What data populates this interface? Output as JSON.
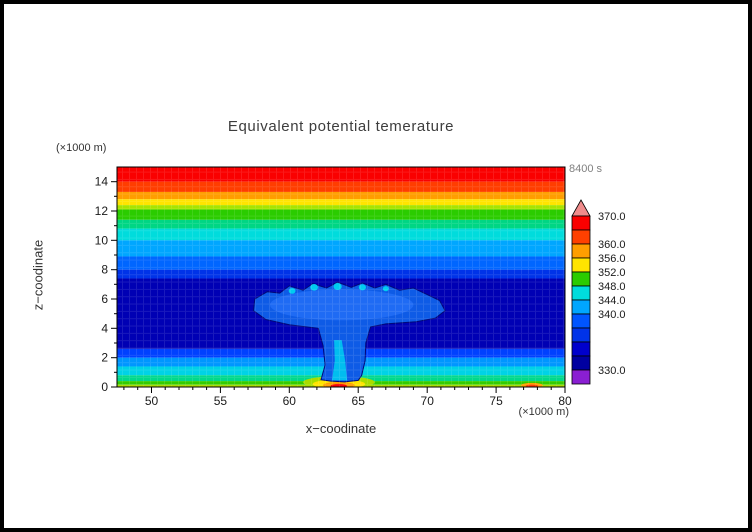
{
  "style": {
    "background": "#ffffff",
    "frame_color": "#000000",
    "title_color": "#3d3d3d",
    "muted_text_color": "#808080"
  },
  "chart_data": {
    "type": "heatmap",
    "subtype": "filled-contour",
    "title": "Equivalent potential temerature",
    "xlabel": "x−coodinate",
    "ylabel": "z−coodinate",
    "x_unit": "(×1000 m)",
    "y_unit": "(×1000 m)",
    "time_label": "8400 s",
    "xlim": [
      47.5,
      80
    ],
    "ylim": [
      0,
      15
    ],
    "xticks": [
      50,
      55,
      60,
      65,
      70,
      75,
      80
    ],
    "yticks": [
      0,
      2,
      4,
      6,
      8,
      10,
      12,
      14
    ],
    "levels": [
      330,
      340,
      344,
      348,
      352,
      356,
      360,
      370
    ],
    "legend_position": "right-colorbar",
    "grid": "fine-mesh-overlay",
    "bands": [
      {
        "z0": 14.0,
        "z1": 15.0,
        "color": "#FA0000"
      },
      {
        "z0": 13.3,
        "z1": 14.0,
        "color": "#FF3D00"
      },
      {
        "z0": 12.8,
        "z1": 13.3,
        "color": "#FF9E00"
      },
      {
        "z0": 12.4,
        "z1": 12.8,
        "color": "#FFE400"
      },
      {
        "z0": 12.1,
        "z1": 12.4,
        "color": "#A8E400"
      },
      {
        "z0": 11.4,
        "z1": 12.1,
        "color": "#2BCC00"
      },
      {
        "z0": 10.8,
        "z1": 11.4,
        "color": "#00D684"
      },
      {
        "z0": 10.0,
        "z1": 10.8,
        "color": "#00DCDC"
      },
      {
        "z0": 8.9,
        "z1": 10.0,
        "color": "#00A6FF"
      },
      {
        "z0": 8.0,
        "z1": 8.9,
        "color": "#0066FF"
      },
      {
        "z0": 7.4,
        "z1": 8.0,
        "color": "#0033E8"
      },
      {
        "z0": 2.6,
        "z1": 7.4,
        "color": "#0000B4"
      },
      {
        "z0": 2.0,
        "z1": 2.6,
        "color": "#0041FF"
      },
      {
        "z0": 1.4,
        "z1": 2.0,
        "color": "#0096FF"
      },
      {
        "z0": 0.8,
        "z1": 1.4,
        "color": "#00D2E6"
      },
      {
        "z0": 0.4,
        "z1": 0.8,
        "color": "#00D88C"
      },
      {
        "z0": 0.15,
        "z1": 0.4,
        "color": "#33CC00"
      },
      {
        "z0": 0.0,
        "z1": 0.15,
        "color": "#A8DC00"
      }
    ],
    "plume": {
      "description": "mushroom-shaped thermal plume of lighter blue air centered near x=64 rising from surface to z≈7",
      "color": "#0E5BE6",
      "outline": "#000878",
      "points": [
        [
          62.3,
          0.5
        ],
        [
          62.6,
          1.5
        ],
        [
          62.45,
          2.8
        ],
        [
          62.1,
          4.0
        ],
        [
          60.0,
          4.25
        ],
        [
          58.3,
          4.6
        ],
        [
          57.4,
          5.2
        ],
        [
          57.5,
          6.0
        ],
        [
          58.4,
          6.5
        ],
        [
          59.3,
          6.4
        ],
        [
          60.0,
          6.9
        ],
        [
          61.0,
          6.6
        ],
        [
          61.7,
          7.05
        ],
        [
          62.7,
          6.75
        ],
        [
          63.5,
          7.15
        ],
        [
          64.5,
          6.8
        ],
        [
          65.3,
          7.1
        ],
        [
          66.2,
          6.75
        ],
        [
          67.0,
          7.0
        ],
        [
          68.0,
          6.6
        ],
        [
          69.0,
          6.75
        ],
        [
          70.0,
          6.3
        ],
        [
          70.9,
          5.9
        ],
        [
          71.3,
          5.2
        ],
        [
          70.6,
          4.7
        ],
        [
          69.2,
          4.45
        ],
        [
          67.0,
          4.3
        ],
        [
          65.9,
          4.1
        ],
        [
          65.55,
          3.0
        ],
        [
          65.5,
          1.8
        ],
        [
          65.25,
          0.8
        ],
        [
          65.0,
          0.45
        ],
        [
          64.0,
          0.35
        ],
        [
          63.0,
          0.4
        ]
      ],
      "inner": {
        "cx": 63.8,
        "cz": 5.6,
        "rx": 5.2,
        "rz": 1.05,
        "color": "#2E79FF"
      },
      "speck_color": "#00CCF0",
      "specks": [
        {
          "cx": 60.2,
          "cz": 6.55,
          "r": 0.25
        },
        {
          "cx": 61.8,
          "cz": 6.8,
          "r": 0.28
        },
        {
          "cx": 63.5,
          "cz": 6.85,
          "r": 0.3
        },
        {
          "cx": 65.3,
          "cz": 6.8,
          "r": 0.26
        },
        {
          "cx": 67.0,
          "cz": 6.7,
          "r": 0.22
        }
      ],
      "stem_core": {
        "color": "#00C8F0",
        "points": [
          [
            63.1,
            0.45
          ],
          [
            63.3,
            1.8
          ],
          [
            63.25,
            3.2
          ],
          [
            63.8,
            3.2
          ],
          [
            64.05,
            1.8
          ],
          [
            64.2,
            0.45
          ]
        ]
      }
    },
    "surface_spots": [
      {
        "cx": 63.6,
        "cz": 0.32,
        "rx": 2.6,
        "rz": 0.42,
        "color": "#A8DC00"
      },
      {
        "cx": 63.6,
        "cz": 0.2,
        "rx": 1.9,
        "rz": 0.32,
        "color": "#FFE400"
      },
      {
        "cx": 63.6,
        "cz": 0.13,
        "rx": 1.15,
        "rz": 0.22,
        "color": "#FF9E00"
      },
      {
        "cx": 63.6,
        "cz": 0.07,
        "rx": 0.6,
        "rz": 0.14,
        "color": "#FA0000"
      },
      {
        "cx": 77.6,
        "cz": 0.12,
        "rx": 0.8,
        "rz": 0.16,
        "color": "#FF9E00"
      },
      {
        "cx": 77.6,
        "cz": 0.07,
        "rx": 0.45,
        "rz": 0.1,
        "color": "#FF3D00"
      }
    ],
    "colorbar": {
      "labels": [
        "370.0",
        "360.0",
        "356.0",
        "352.0",
        "348.0",
        "344.0",
        "340.0",
        "330.0"
      ],
      "segments": [
        {
          "color": "#F08C8C",
          "arrow": true
        },
        {
          "color": "#FA0000",
          "label_top": "370.0"
        },
        {
          "color": "#FF4000"
        },
        {
          "color": "#FF9E00",
          "label_top": "360.0"
        },
        {
          "color": "#FFE400",
          "label_top": "356.0"
        },
        {
          "color": "#2BCC00",
          "label_top": "352.0"
        },
        {
          "color": "#00DCDC",
          "label_top": "348.0"
        },
        {
          "color": "#00A6FF",
          "label_top": "344.0"
        },
        {
          "color": "#0055FF",
          "label_top": "340.0"
        },
        {
          "color": "#0033E8"
        },
        {
          "color": "#0000CC"
        },
        {
          "color": "#0000A0"
        },
        {
          "color": "#8A1FD2",
          "label_top": "330.0"
        }
      ]
    }
  }
}
